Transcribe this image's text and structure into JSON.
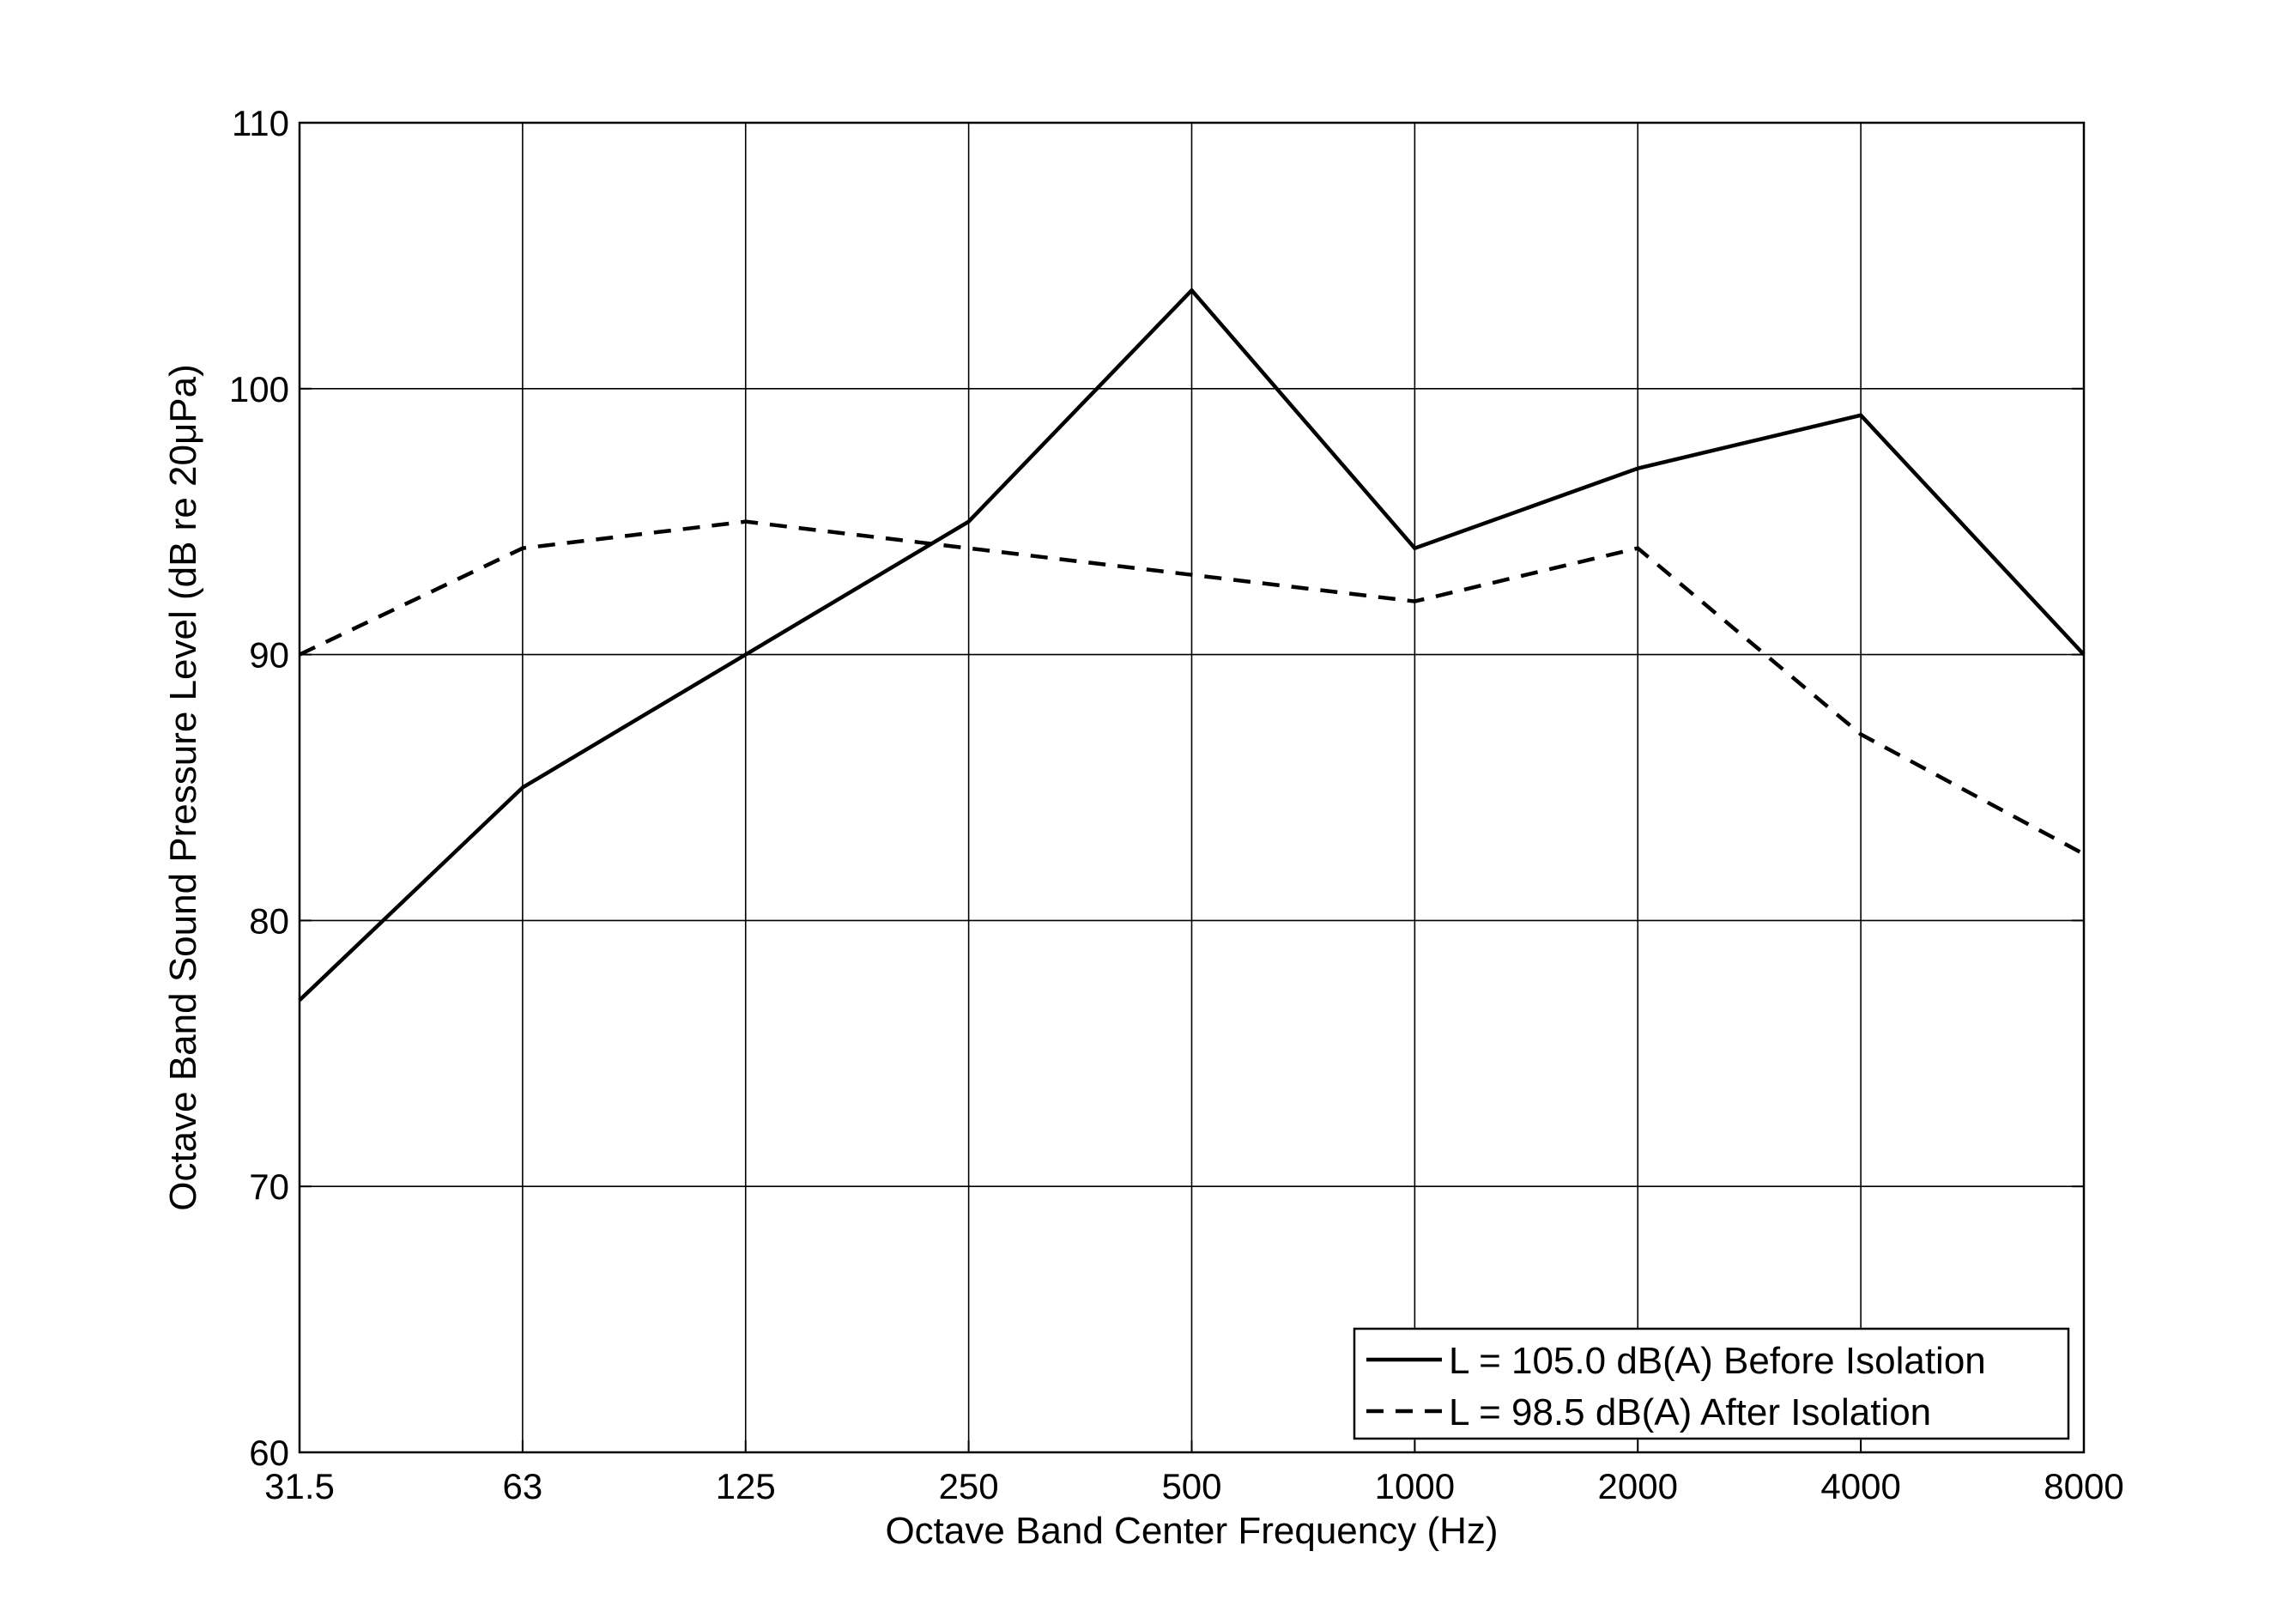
{
  "chart_data": {
    "type": "line",
    "title": "",
    "xlabel": "Octave Band Center Frequency (Hz)",
    "ylabel": "Octave Band Sound Pressure Level (dB re 20μPa)",
    "x_scale": "log2",
    "categories": [
      "31.5",
      "63",
      "125",
      "250",
      "500",
      "1000",
      "2000",
      "4000",
      "8000"
    ],
    "ylim": [
      60,
      110
    ],
    "yticks": [
      "60",
      "70",
      "80",
      "90",
      "100",
      "110"
    ],
    "grid": true,
    "legend_position": "bottom-right",
    "series": [
      {
        "name": "L = 105.0 dB(A) Before Isolation",
        "style": "solid",
        "color": "#000000",
        "values": [
          77,
          85,
          90,
          95,
          103.7,
          94,
          97,
          99,
          90
        ]
      },
      {
        "name": "L = 98.5 dB(A) After Isolation",
        "style": "dashed",
        "color": "#000000",
        "values": [
          90,
          94,
          95,
          94,
          93,
          92,
          94,
          87,
          82.5
        ]
      }
    ]
  }
}
